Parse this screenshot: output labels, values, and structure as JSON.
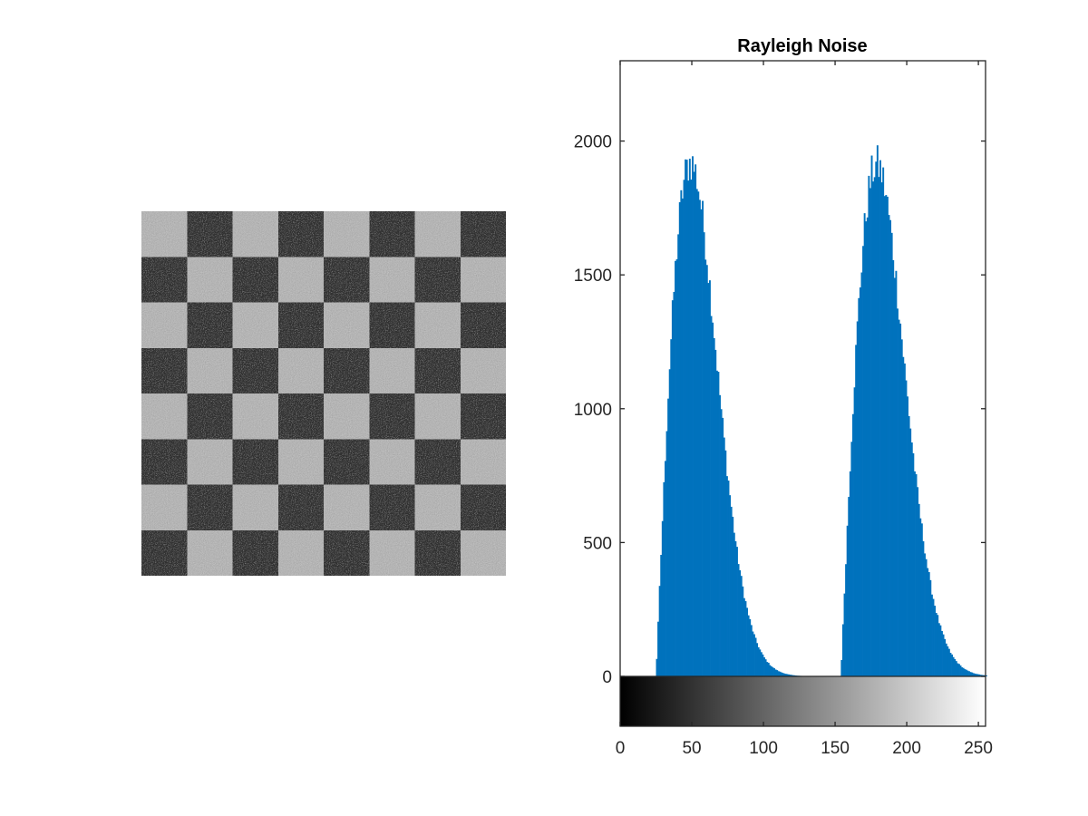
{
  "image_panel": {
    "rows": 8,
    "cols": 8,
    "dark_level": 50,
    "light_level": 180,
    "noise": "rayleigh"
  },
  "chart_data": {
    "type": "bar",
    "title": "Rayleigh Noise",
    "xlabel": "",
    "ylabel": "",
    "xlim": [
      0,
      255
    ],
    "ylim": [
      0,
      2300
    ],
    "xticks": [
      0,
      50,
      100,
      150,
      200,
      250
    ],
    "xtick_labels": [
      "0",
      "50",
      "100",
      "150",
      "200",
      "250"
    ],
    "yticks": [
      0,
      500,
      1000,
      1500,
      2000
    ],
    "ytick_labels": [
      "0",
      "500",
      "1000",
      "1500",
      "2000"
    ],
    "bar_color": "#0072bd",
    "colorbar": "gray",
    "peaks": [
      {
        "start": 25,
        "mode": 49,
        "max": 1960
      },
      {
        "start": 154,
        "mode": 179,
        "max": 1950
      }
    ],
    "grid": false,
    "legend": false
  }
}
